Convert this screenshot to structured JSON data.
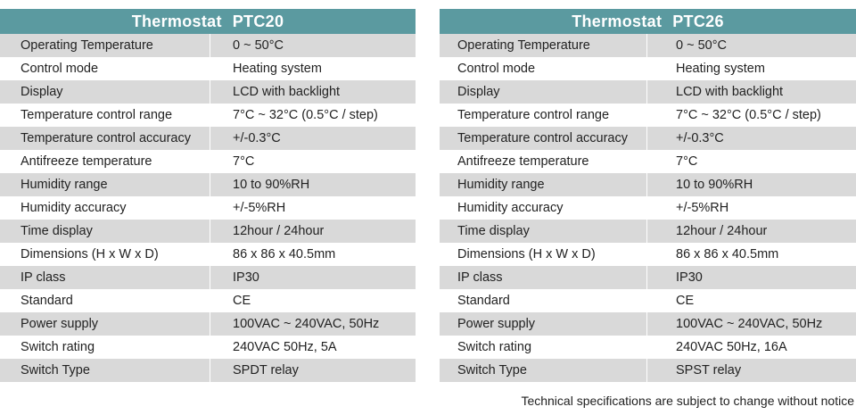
{
  "tables": [
    {
      "title_brand": "Thermostat",
      "title_model": "PTC20",
      "rows": [
        {
          "label": "Operating Temperature",
          "value": "0 ~ 50°C"
        },
        {
          "label": "Control mode",
          "value": "Heating system"
        },
        {
          "label": "Display",
          "value": "LCD with backlight"
        },
        {
          "label": "Temperature control range",
          "value": "7°C ~ 32°C (0.5°C / step)"
        },
        {
          "label": "Temperature control accuracy",
          "value": "+/-0.3°C"
        },
        {
          "label": "Antifreeze temperature",
          "value": "7°C"
        },
        {
          "label": "Humidity range",
          "value": "10 to 90%RH"
        },
        {
          "label": "Humidity accuracy",
          "value": "+/-5%RH"
        },
        {
          "label": "Time display",
          "value": "12hour / 24hour"
        },
        {
          "label": "Dimensions (H x W x D)",
          "value": "86 x 86 x 40.5mm"
        },
        {
          "label": "IP class",
          "value": "IP30"
        },
        {
          "label": "Standard",
          "value": "CE"
        },
        {
          "label": "Power supply",
          "value": "100VAC ~ 240VAC, 50Hz"
        },
        {
          "label": "Switch rating",
          "value": "240VAC 50Hz, 5A"
        },
        {
          "label": "Switch Type",
          "value": "SPDT relay"
        }
      ]
    },
    {
      "title_brand": "Thermostat",
      "title_model": "PTC26",
      "rows": [
        {
          "label": "Operating Temperature",
          "value": "0 ~ 50°C"
        },
        {
          "label": "Control mode",
          "value": "Heating system"
        },
        {
          "label": "Display",
          "value": "LCD with backlight"
        },
        {
          "label": "Temperature control range",
          "value": "7°C ~ 32°C (0.5°C / step)"
        },
        {
          "label": "Temperature control accuracy",
          "value": "+/-0.3°C"
        },
        {
          "label": "Antifreeze temperature",
          "value": "7°C"
        },
        {
          "label": "Humidity range",
          "value": "10 to 90%RH"
        },
        {
          "label": "Humidity accuracy",
          "value": "+/-5%RH"
        },
        {
          "label": "Time display",
          "value": "12hour / 24hour"
        },
        {
          "label": "Dimensions (H x W x D)",
          "value": "86 x 86 x 40.5mm"
        },
        {
          "label": "IP class",
          "value": "IP30"
        },
        {
          "label": "Standard",
          "value": "CE"
        },
        {
          "label": "Power supply",
          "value": "100VAC ~ 240VAC, 50Hz"
        },
        {
          "label": "Switch rating",
          "value": "240VAC 50Hz, 16A"
        },
        {
          "label": "Switch Type",
          "value": "SPST relay"
        }
      ]
    }
  ],
  "footnote": "Technical specifications are subject to change without notice",
  "colors": {
    "header_bg": "#5b9aa0",
    "stripe": "#d9d9d9"
  }
}
